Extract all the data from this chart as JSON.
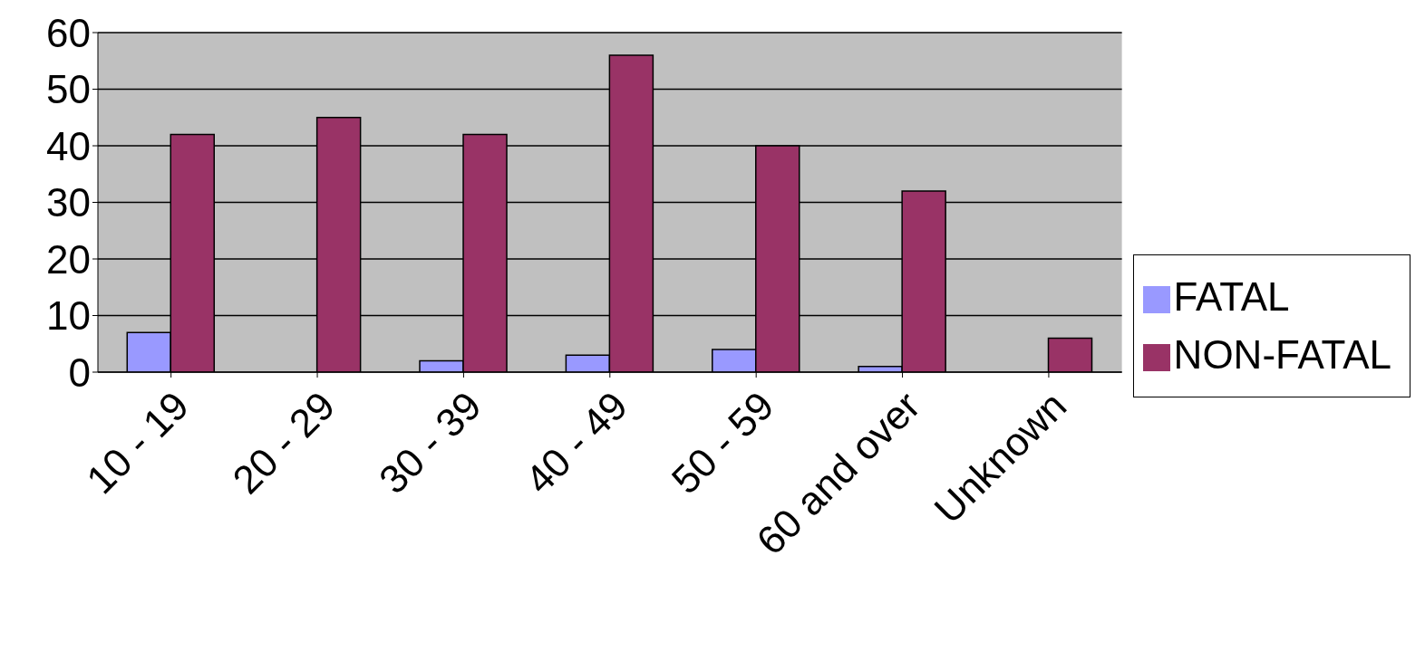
{
  "chart_data": {
    "type": "bar",
    "categories": [
      "10 - 19",
      "20 - 29",
      "30 - 39",
      "40 - 49",
      "50 - 59",
      "60 and over",
      "Unknown"
    ],
    "series": [
      {
        "name": "FATAL",
        "color": "#9999ff",
        "values": [
          7,
          0,
          2,
          3,
          4,
          1,
          0
        ]
      },
      {
        "name": "NON-FATAL",
        "color": "#993366",
        "values": [
          42,
          45,
          42,
          56,
          40,
          32,
          6
        ]
      }
    ],
    "ylim": [
      0,
      60
    ],
    "yticks": [
      0,
      10,
      20,
      30,
      40,
      50,
      60
    ],
    "grid": "y",
    "legend": "right"
  }
}
